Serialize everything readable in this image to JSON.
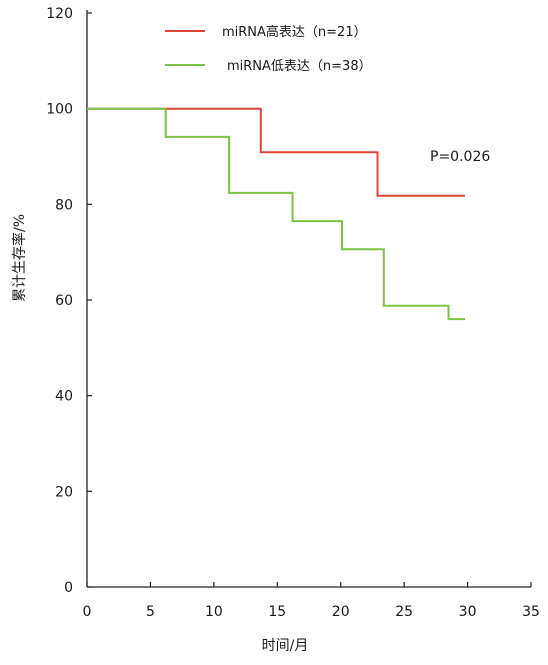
{
  "chart_data": {
    "type": "line",
    "subtype": "step (Kaplan-Meier survival curve)",
    "xlabel": "时间/月",
    "ylabel": "累计生存率/%",
    "xlim": [
      0,
      35
    ],
    "ylim": [
      0,
      120
    ],
    "xticks": [
      0,
      5,
      10,
      15,
      20,
      25,
      30,
      35
    ],
    "yticks": [
      0,
      20,
      40,
      60,
      80,
      100,
      120
    ],
    "grid": false,
    "legend_position": "top",
    "annotation": "P=0.026",
    "series": [
      {
        "name": "miRNA高表达（n=21）",
        "color": "#e0453a",
        "x": [
          0,
          13.7,
          13.7,
          22.9,
          22.9,
          29.8
        ],
        "y": [
          100,
          100,
          90.9,
          90.9,
          81.8,
          81.8
        ]
      },
      {
        "name": "miRNA低表达（n=38）",
        "color": "#7cc443",
        "x": [
          0,
          6.2,
          6.2,
          11.2,
          11.2,
          16.2,
          16.2,
          20.1,
          20.1,
          23.4,
          23.4,
          28.5,
          28.5,
          29.8
        ],
        "y": [
          100,
          100,
          94.1,
          94.1,
          82.4,
          82.4,
          76.5,
          76.5,
          70.6,
          70.6,
          58.8,
          58.8,
          56.0,
          56.0
        ]
      }
    ]
  }
}
